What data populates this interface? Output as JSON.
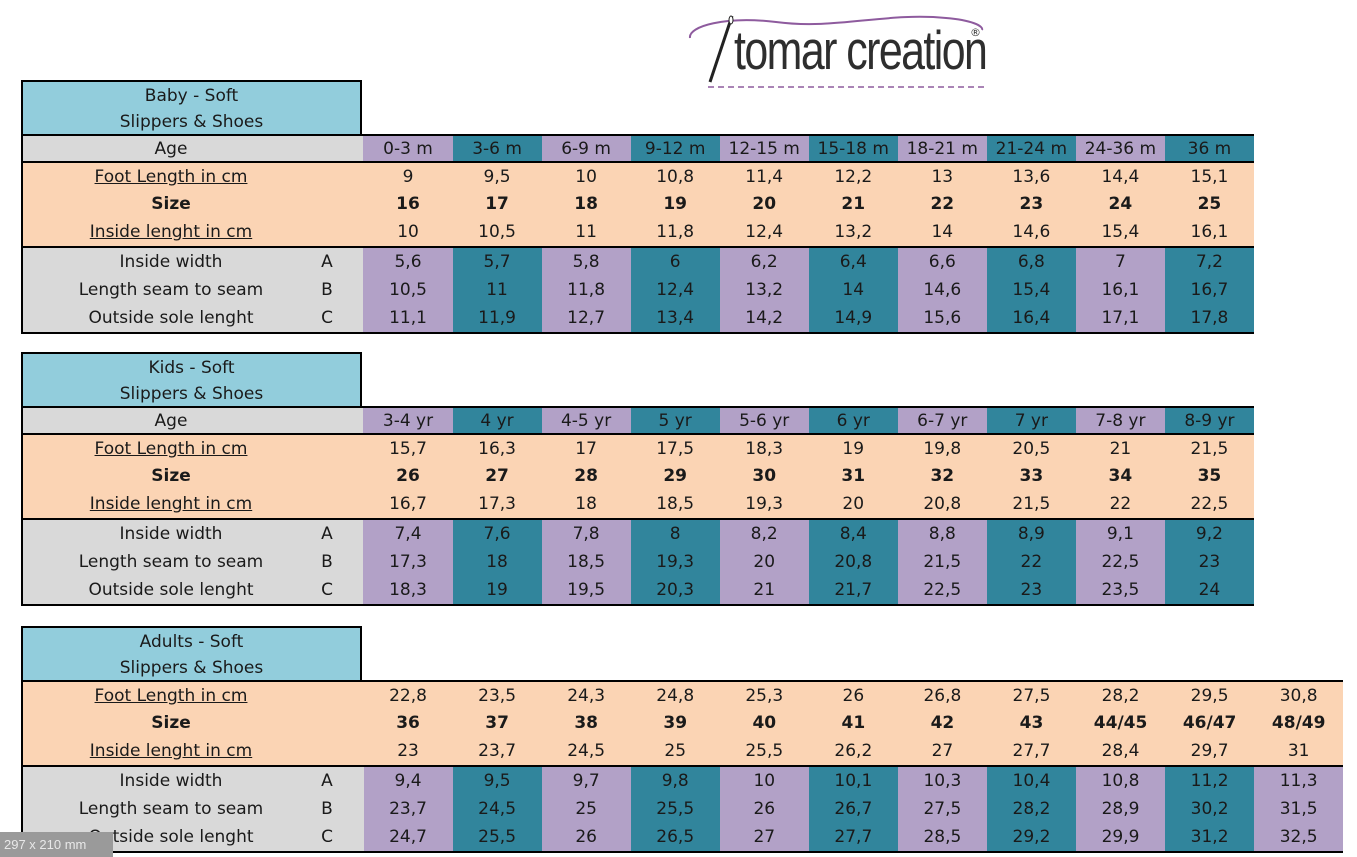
{
  "logo": {
    "text": "tomar creation",
    "reg_mark": "®"
  },
  "colors": {
    "title": "#92cddc",
    "peach": "#fbd4b4",
    "gray": "#d9d9d9",
    "purple": "#b2a1c7",
    "teal": "#31859c"
  },
  "labels": {
    "age": "Age",
    "foot_length": "Foot Length in cm",
    "size": "Size",
    "inside_length": "Inside lenght in cm",
    "inside_width": "Inside width",
    "seam": "Length seam to seam",
    "outside_sole": "Outside sole lenght",
    "letter_a": "A",
    "letter_b": "B",
    "letter_c": "C"
  },
  "sections": [
    {
      "title1": "Baby - Soft",
      "title2": "Slippers & Shoes",
      "ages": [
        "0-3 m",
        "3-6 m",
        "6-9 m",
        "9-12 m",
        "12-15 m",
        "15-18 m",
        "18-21 m",
        "21-24 m",
        "24-36 m",
        "36 m"
      ],
      "foot_length": [
        "9",
        "9,5",
        "10",
        "10,8",
        "11,4",
        "12,2",
        "13",
        "13,6",
        "14,4",
        "15,1"
      ],
      "size": [
        "16",
        "17",
        "18",
        "19",
        "20",
        "21",
        "22",
        "23",
        "24",
        "25"
      ],
      "inside_length": [
        "10",
        "10,5",
        "11",
        "11,8",
        "12,4",
        "13,2",
        "14",
        "14,6",
        "15,4",
        "16,1"
      ],
      "inside_width": [
        "5,6",
        "5,7",
        "5,8",
        "6",
        "6,2",
        "6,4",
        "6,6",
        "6,8",
        "7",
        "7,2"
      ],
      "seam": [
        "10,5",
        "11",
        "11,8",
        "12,4",
        "13,2",
        "14",
        "14,6",
        "15,4",
        "16,1",
        "16,7"
      ],
      "outside_sole": [
        "11,1",
        "11,9",
        "12,7",
        "13,4",
        "14,2",
        "14,9",
        "15,6",
        "16,4",
        "17,1",
        "17,8"
      ]
    },
    {
      "title1": "Kids - Soft",
      "title2": "Slippers & Shoes",
      "ages": [
        "3-4 yr",
        "4 yr",
        "4-5 yr",
        "5 yr",
        "5-6 yr",
        "6 yr",
        "6-7 yr",
        "7 yr",
        "7-8 yr",
        "8-9 yr"
      ],
      "foot_length": [
        "15,7",
        "16,3",
        "17",
        "17,5",
        "18,3",
        "19",
        "19,8",
        "20,5",
        "21",
        "21,5"
      ],
      "size": [
        "26",
        "27",
        "28",
        "29",
        "30",
        "31",
        "32",
        "33",
        "34",
        "35"
      ],
      "inside_length": [
        "16,7",
        "17,3",
        "18",
        "18,5",
        "19,3",
        "20",
        "20,8",
        "21,5",
        "22",
        "22,5"
      ],
      "inside_width": [
        "7,4",
        "7,6",
        "7,8",
        "8",
        "8,2",
        "8,4",
        "8,8",
        "8,9",
        "9,1",
        "9,2"
      ],
      "seam": [
        "17,3",
        "18",
        "18,5",
        "19,3",
        "20",
        "20,8",
        "21,5",
        "22",
        "22,5",
        "23"
      ],
      "outside_sole": [
        "18,3",
        "19",
        "19,5",
        "20,3",
        "21",
        "21,7",
        "22,5",
        "23",
        "23,5",
        "24"
      ]
    },
    {
      "title1": "Adults - Soft",
      "title2": "Slippers & Shoes",
      "foot_length": [
        "22,8",
        "23,5",
        "24,3",
        "24,8",
        "25,3",
        "26",
        "26,8",
        "27,5",
        "28,2",
        "29,5",
        "30,8"
      ],
      "size": [
        "36",
        "37",
        "38",
        "39",
        "40",
        "41",
        "42",
        "43",
        "44/45",
        "46/47",
        "48/49"
      ],
      "inside_length": [
        "23",
        "23,7",
        "24,5",
        "25",
        "25,5",
        "26,2",
        "27",
        "27,7",
        "28,4",
        "29,7",
        "31"
      ],
      "inside_width": [
        "9,4",
        "9,5",
        "9,7",
        "9,8",
        "10",
        "10,1",
        "10,3",
        "10,4",
        "10,8",
        "11,2",
        "11,3"
      ],
      "seam": [
        "23,7",
        "24,5",
        "25",
        "25,5",
        "26",
        "26,7",
        "27,5",
        "28,2",
        "28,9",
        "30,2",
        "31,5"
      ],
      "outside_sole": [
        "24,7",
        "25,5",
        "26",
        "26,5",
        "27",
        "27,7",
        "28,5",
        "29,2",
        "29,9",
        "31,2",
        "32,5"
      ]
    }
  ],
  "footer": {
    "paper_size": "297 x 210 mm"
  }
}
